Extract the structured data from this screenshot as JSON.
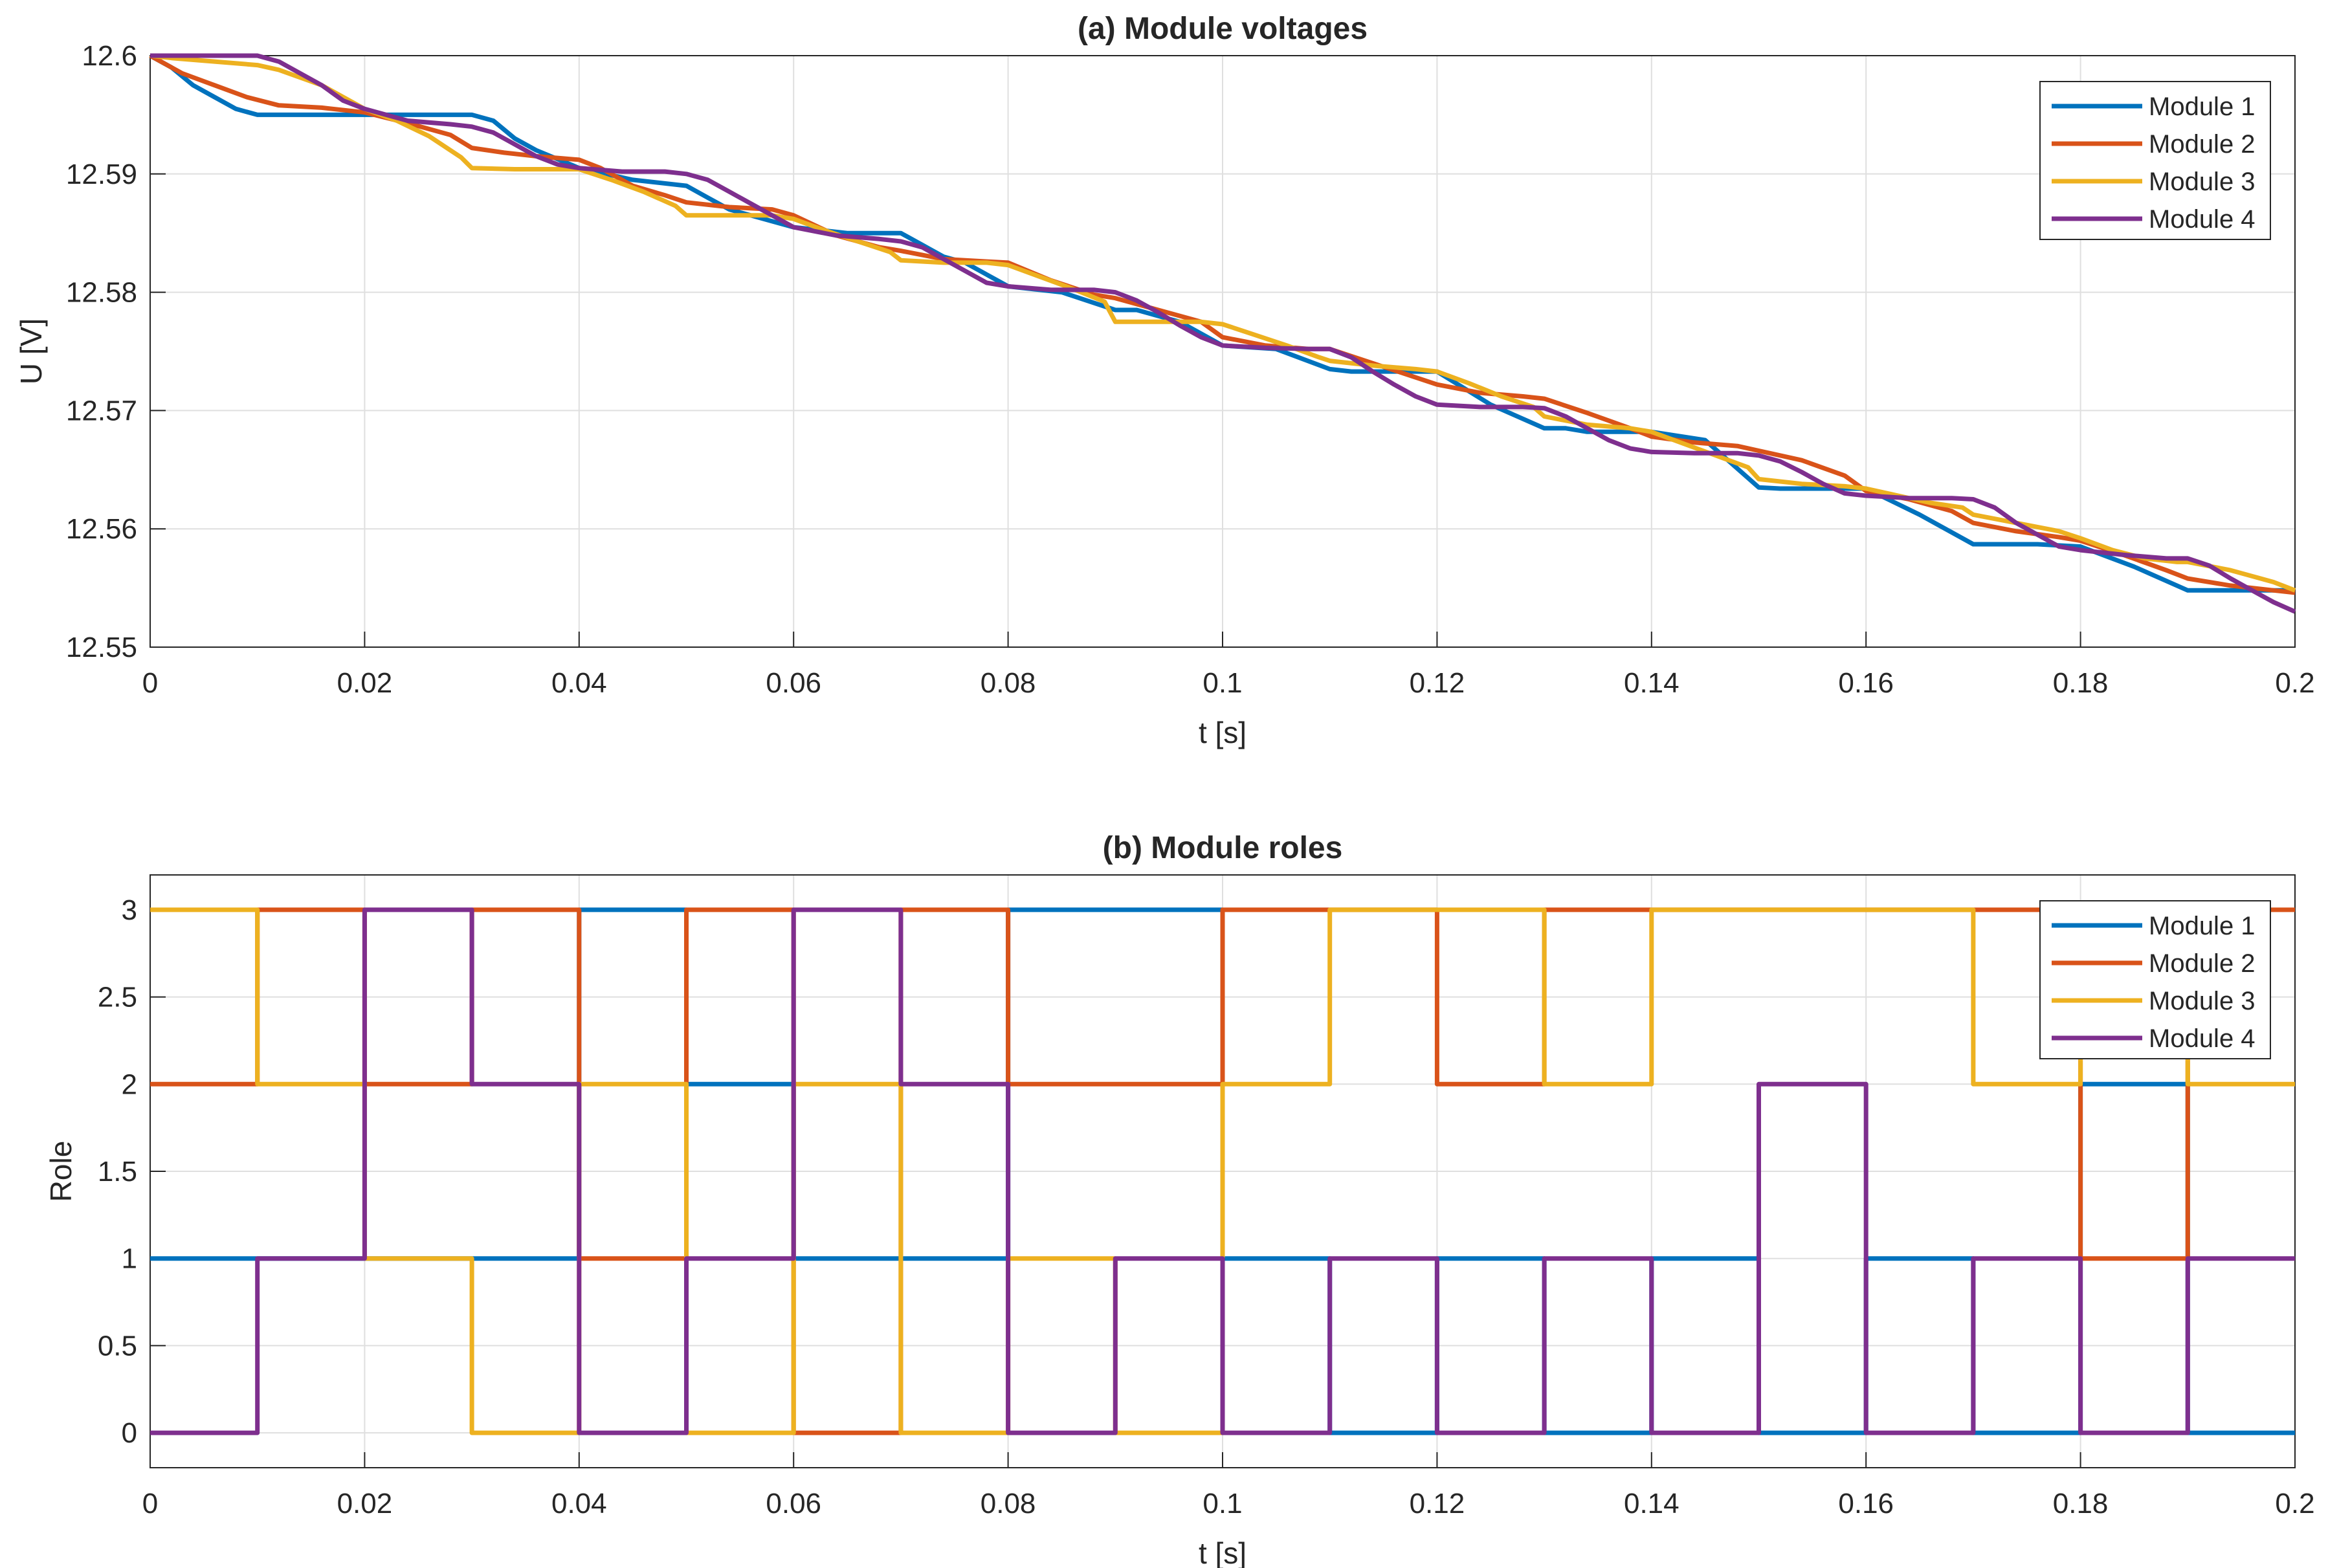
{
  "figure": {
    "colors": {
      "grid": "#dfdfdf",
      "axis": "#262626",
      "series": [
        "#0072BD",
        "#D95319",
        "#EDB120",
        "#7E2F8E"
      ]
    }
  },
  "chart_data": [
    {
      "type": "line",
      "title": "(a) Module voltages",
      "xlabel": "t [s]",
      "ylabel": "U [V]",
      "xlim": [
        0,
        0.2
      ],
      "ylim": [
        12.55,
        12.6
      ],
      "grid": true,
      "legend_position": "top-right",
      "xticks": [
        0,
        0.02,
        0.04,
        0.06,
        0.08,
        0.1,
        0.12,
        0.14,
        0.16,
        0.18,
        0.2
      ],
      "xtick_labels": [
        "0",
        "0.02",
        "0.04",
        "0.06",
        "0.08",
        "0.1",
        "0.12",
        "0.14",
        "0.16",
        "0.18",
        "0.2"
      ],
      "yticks": [
        12.55,
        12.56,
        12.57,
        12.58,
        12.59,
        12.6
      ],
      "ytick_labels": [
        "12.55",
        "12.56",
        "12.57",
        "12.58",
        "12.59",
        "12.6"
      ],
      "series": [
        {
          "name": "Module 1",
          "x": [
            0,
            0.002,
            0.004,
            0.006,
            0.008,
            0.01,
            0.015,
            0.02,
            0.025,
            0.03,
            0.032,
            0.034,
            0.036,
            0.04,
            0.045,
            0.05,
            0.052,
            0.054,
            0.056,
            0.06,
            0.065,
            0.07,
            0.072,
            0.074,
            0.076,
            0.08,
            0.085,
            0.09,
            0.092,
            0.094,
            0.096,
            0.1,
            0.105,
            0.11,
            0.112,
            0.114,
            0.116,
            0.12,
            0.125,
            0.13,
            0.132,
            0.134,
            0.136,
            0.14,
            0.145,
            0.15,
            0.152,
            0.154,
            0.156,
            0.16,
            0.165,
            0.17,
            0.172,
            0.174,
            0.176,
            0.18,
            0.185,
            0.19,
            0.192,
            0.194,
            0.196,
            0.2
          ],
          "y": [
            12.6,
            12.599,
            12.5975,
            12.5965,
            12.5955,
            12.595,
            12.595,
            12.595,
            12.595,
            12.595,
            12.5945,
            12.593,
            12.592,
            12.5905,
            12.5895,
            12.589,
            12.588,
            12.587,
            12.5865,
            12.5855,
            12.585,
            12.585,
            12.584,
            12.583,
            12.5825,
            12.5805,
            12.58,
            12.5785,
            12.5785,
            12.578,
            12.5775,
            12.5755,
            12.5752,
            12.5735,
            12.5733,
            12.5733,
            12.5733,
            12.5733,
            12.5705,
            12.5685,
            12.5685,
            12.5682,
            12.5682,
            12.5682,
            12.5675,
            12.5635,
            12.5634,
            12.5634,
            12.5634,
            12.5634,
            12.5612,
            12.5587,
            12.5587,
            12.5587,
            12.5587,
            12.5585,
            12.5568,
            12.5548,
            12.5548,
            12.5548,
            12.5548,
            12.5548
          ]
        },
        {
          "name": "Module 2",
          "x": [
            0,
            0.003,
            0.006,
            0.009,
            0.012,
            0.016,
            0.02,
            0.024,
            0.028,
            0.03,
            0.033,
            0.036,
            0.04,
            0.042,
            0.045,
            0.048,
            0.05,
            0.054,
            0.058,
            0.06,
            0.064,
            0.068,
            0.07,
            0.074,
            0.078,
            0.08,
            0.084,
            0.088,
            0.09,
            0.094,
            0.098,
            0.1,
            0.104,
            0.108,
            0.11,
            0.114,
            0.118,
            0.12,
            0.124,
            0.128,
            0.13,
            0.134,
            0.138,
            0.14,
            0.144,
            0.148,
            0.15,
            0.154,
            0.158,
            0.16,
            0.164,
            0.168,
            0.17,
            0.174,
            0.178,
            0.18,
            0.184,
            0.188,
            0.19,
            0.194,
            0.198,
            0.2
          ],
          "y": [
            12.6,
            12.5985,
            12.5975,
            12.5965,
            12.5958,
            12.5956,
            12.5952,
            12.5943,
            12.5933,
            12.5922,
            12.5918,
            12.5915,
            12.5912,
            12.5905,
            12.589,
            12.5882,
            12.5876,
            12.5872,
            12.587,
            12.5865,
            12.5848,
            12.5838,
            12.5835,
            12.5828,
            12.5826,
            12.5825,
            12.581,
            12.5798,
            12.5795,
            12.5785,
            12.5775,
            12.5762,
            12.5755,
            12.5752,
            12.5752,
            12.574,
            12.5728,
            12.5722,
            12.5715,
            12.5712,
            12.571,
            12.5698,
            12.5685,
            12.5678,
            12.5673,
            12.567,
            12.5666,
            12.5658,
            12.5645,
            12.5632,
            12.5625,
            12.5615,
            12.5605,
            12.5598,
            12.5593,
            12.559,
            12.5578,
            12.5565,
            12.5558,
            12.5552,
            12.5548,
            12.5546
          ]
        },
        {
          "name": "Module 3",
          "x": [
            0,
            0.002,
            0.006,
            0.01,
            0.012,
            0.016,
            0.02,
            0.023,
            0.026,
            0.029,
            0.03,
            0.034,
            0.038,
            0.04,
            0.043,
            0.046,
            0.049,
            0.05,
            0.054,
            0.058,
            0.06,
            0.063,
            0.066,
            0.069,
            0.07,
            0.074,
            0.078,
            0.08,
            0.083,
            0.086,
            0.089,
            0.09,
            0.094,
            0.098,
            0.1,
            0.103,
            0.106,
            0.109,
            0.11,
            0.114,
            0.118,
            0.12,
            0.123,
            0.126,
            0.129,
            0.13,
            0.134,
            0.138,
            0.14,
            0.143,
            0.146,
            0.149,
            0.15,
            0.154,
            0.158,
            0.16,
            0.163,
            0.166,
            0.169,
            0.17,
            0.174,
            0.178,
            0.18,
            0.183,
            0.186,
            0.189,
            0.19,
            0.194,
            0.198,
            0.2
          ],
          "y": [
            12.6,
            12.5998,
            12.5995,
            12.5992,
            12.5988,
            12.5975,
            12.5955,
            12.5945,
            12.5932,
            12.5914,
            12.5905,
            12.5904,
            12.5904,
            12.5904,
            12.5895,
            12.5885,
            12.5873,
            12.5865,
            12.5865,
            12.5865,
            12.5862,
            12.5852,
            12.5843,
            12.5834,
            12.5827,
            12.5825,
            12.5825,
            12.5823,
            12.5813,
            12.5803,
            12.5792,
            12.5775,
            12.5775,
            12.5775,
            12.5773,
            12.5764,
            12.5755,
            12.5745,
            12.5742,
            12.5738,
            12.5735,
            12.5733,
            12.5723,
            12.5712,
            12.5703,
            12.5695,
            12.5688,
            12.5685,
            12.5682,
            12.5672,
            12.5662,
            12.5652,
            12.5642,
            12.5638,
            12.5636,
            12.5634,
            12.5628,
            12.5622,
            12.5618,
            12.5612,
            12.5605,
            12.5598,
            12.5592,
            12.5582,
            12.5575,
            12.5572,
            12.5572,
            12.5565,
            12.5555,
            12.5548
          ]
        },
        {
          "name": "Module 4",
          "x": [
            0,
            0.005,
            0.01,
            0.012,
            0.014,
            0.016,
            0.018,
            0.02,
            0.024,
            0.028,
            0.03,
            0.032,
            0.034,
            0.036,
            0.038,
            0.04,
            0.044,
            0.048,
            0.05,
            0.052,
            0.054,
            0.056,
            0.058,
            0.06,
            0.064,
            0.068,
            0.07,
            0.072,
            0.074,
            0.076,
            0.078,
            0.08,
            0.084,
            0.088,
            0.09,
            0.092,
            0.094,
            0.096,
            0.098,
            0.1,
            0.104,
            0.108,
            0.11,
            0.112,
            0.114,
            0.116,
            0.118,
            0.12,
            0.124,
            0.128,
            0.13,
            0.132,
            0.134,
            0.136,
            0.138,
            0.14,
            0.144,
            0.148,
            0.15,
            0.152,
            0.154,
            0.156,
            0.158,
            0.16,
            0.164,
            0.168,
            0.17,
            0.172,
            0.174,
            0.176,
            0.178,
            0.18,
            0.184,
            0.188,
            0.19,
            0.192,
            0.194,
            0.196,
            0.198,
            0.2
          ],
          "y": [
            12.6,
            12.6,
            12.6,
            12.5995,
            12.5985,
            12.5975,
            12.5962,
            12.5955,
            12.5945,
            12.5942,
            12.594,
            12.5935,
            12.5925,
            12.5915,
            12.5908,
            12.5905,
            12.5902,
            12.5902,
            12.59,
            12.5895,
            12.5885,
            12.5875,
            12.5865,
            12.5855,
            12.5848,
            12.5845,
            12.5843,
            12.5838,
            12.5828,
            12.5818,
            12.5808,
            12.5805,
            12.5802,
            12.5802,
            12.58,
            12.5793,
            12.5783,
            12.5772,
            12.5762,
            12.5755,
            12.5753,
            12.5752,
            12.5752,
            12.5745,
            12.5733,
            12.5722,
            12.5712,
            12.5705,
            12.5703,
            12.5703,
            12.5702,
            12.5695,
            12.5685,
            12.5675,
            12.5668,
            12.5665,
            12.5664,
            12.5664,
            12.5662,
            12.5657,
            12.5648,
            12.5638,
            12.563,
            12.5628,
            12.5626,
            12.5626,
            12.5625,
            12.5618,
            12.5605,
            12.5595,
            12.5585,
            12.5582,
            12.5578,
            12.5575,
            12.5575,
            12.5569,
            12.5558,
            12.5548,
            12.5538,
            12.553
          ]
        }
      ]
    },
    {
      "type": "line",
      "step": true,
      "title": "(b) Module roles",
      "xlabel": "t [s]",
      "ylabel": "Role",
      "xlim": [
        0,
        0.2
      ],
      "ylim": [
        -0.2,
        3.2
      ],
      "grid": true,
      "legend_position": "top-right",
      "xticks": [
        0,
        0.02,
        0.04,
        0.06,
        0.08,
        0.1,
        0.12,
        0.14,
        0.16,
        0.18,
        0.2
      ],
      "xtick_labels": [
        "0",
        "0.02",
        "0.04",
        "0.06",
        "0.08",
        "0.1",
        "0.12",
        "0.14",
        "0.16",
        "0.18",
        "0.2"
      ],
      "yticks": [
        0,
        0.5,
        1,
        1.5,
        2,
        2.5,
        3
      ],
      "ytick_labels": [
        "0",
        "0.5",
        "1",
        "1.5",
        "2",
        "2.5",
        "3"
      ],
      "segment_breaks": [
        0,
        0.01,
        0.02,
        0.03,
        0.04,
        0.05,
        0.06,
        0.07,
        0.08,
        0.09,
        0.1,
        0.11,
        0.12,
        0.13,
        0.14,
        0.15,
        0.16,
        0.17,
        0.18,
        0.19,
        0.2
      ],
      "series": [
        {
          "name": "Module 1",
          "values": [
            1,
            1,
            1,
            1,
            3,
            2,
            1,
            1,
            3,
            3,
            1,
            0,
            1,
            0,
            1,
            0,
            1,
            0,
            2,
            0
          ]
        },
        {
          "name": "Module 2",
          "values": [
            2,
            3,
            2,
            3,
            1,
            3,
            0,
            3,
            2,
            2,
            3,
            3,
            2,
            3,
            3,
            3,
            3,
            3,
            1,
            3
          ]
        },
        {
          "name": "Module 3",
          "values": [
            3,
            2,
            1,
            0,
            2,
            0,
            2,
            0,
            1,
            0,
            2,
            3,
            3,
            2,
            3,
            3,
            3,
            2,
            3,
            2
          ]
        },
        {
          "name": "Module 4",
          "values": [
            0,
            1,
            3,
            2,
            0,
            1,
            3,
            2,
            0,
            1,
            0,
            1,
            0,
            1,
            0,
            2,
            0,
            1,
            0,
            1
          ]
        }
      ]
    }
  ]
}
